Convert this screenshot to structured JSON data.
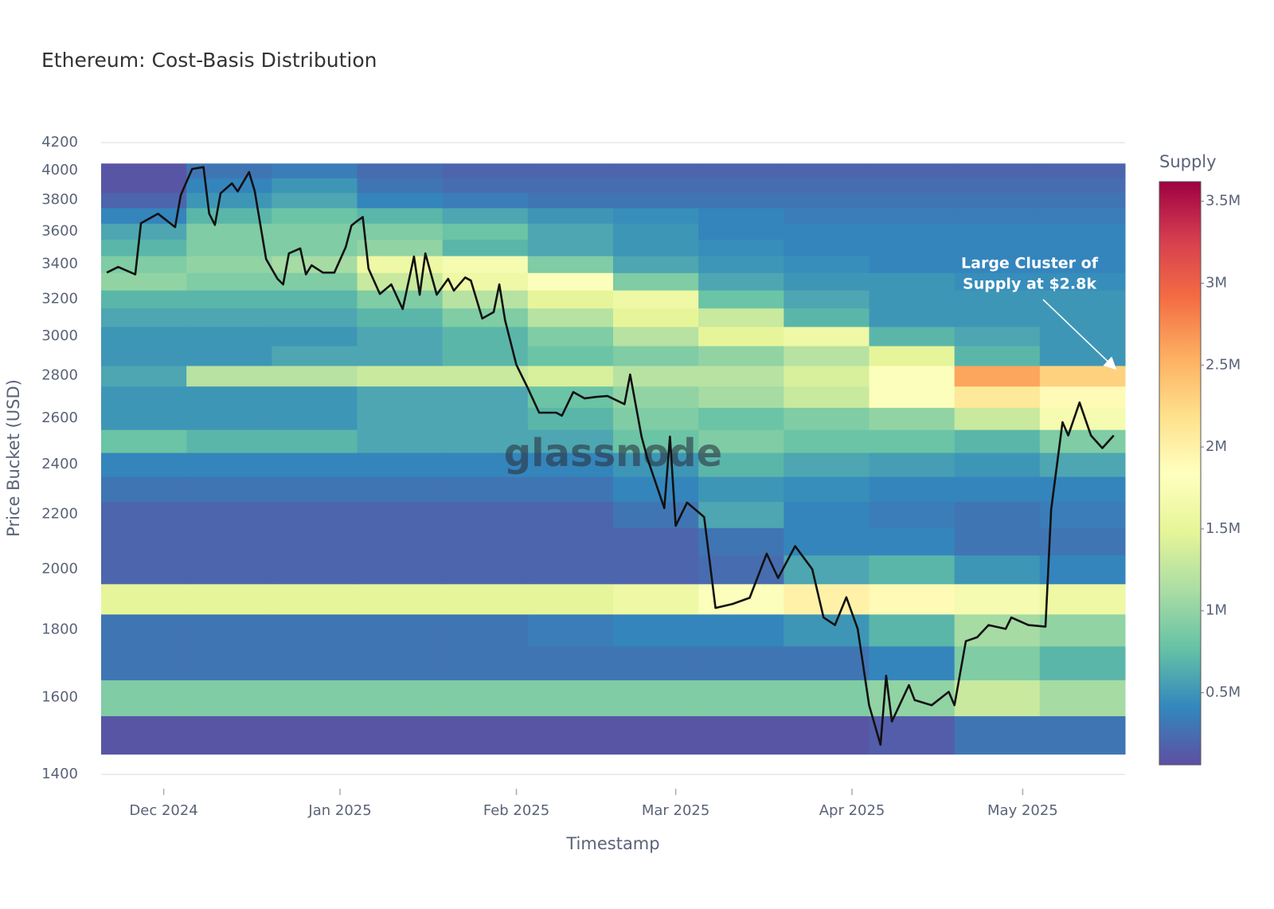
{
  "chart_data": {
    "type": "heatmap",
    "title": "Ethereum: Cost-Basis Distribution",
    "x_label": "Timestamp",
    "y_label": "Price Bucket (USD)",
    "colorbar_title": "Supply",
    "watermark": "glassnode",
    "annotation": [
      "Large Cluster of",
      "Supply at $2.8k"
    ],
    "xlim": [
      "2024-11-20",
      "2025-05-19"
    ],
    "xticks": [
      {
        "value": "2024-12-01",
        "label": "Dec 2024"
      },
      {
        "value": "2025-01-01",
        "label": "Jan 2025"
      },
      {
        "value": "2025-02-01",
        "label": "Feb 2025"
      },
      {
        "value": "2025-03-01",
        "label": "Mar 2025"
      },
      {
        "value": "2025-04-01",
        "label": "Apr 2025"
      },
      {
        "value": "2025-05-01",
        "label": "May 2025"
      }
    ],
    "ylim": [
      1400,
      4200
    ],
    "yticks": [
      1400,
      1600,
      1800,
      2000,
      2200,
      2400,
      2600,
      2800,
      3000,
      3200,
      3400,
      3600,
      3800,
      4000,
      4200
    ],
    "ylog": true,
    "grid": true,
    "colorscale": [
      "#5e4fa2",
      "#3288bd",
      "#66c2a5",
      "#abdda4",
      "#e6f598",
      "#ffffbf",
      "#fee08b",
      "#fdae61",
      "#f46d43",
      "#d53e4f",
      "#9e0142"
    ],
    "zlim": [
      60000,
      3620000
    ],
    "zticks": [
      {
        "value": 500000,
        "label": "0.5M"
      },
      {
        "value": 1000000,
        "label": "1M"
      },
      {
        "value": 1500000,
        "label": "1.5M"
      },
      {
        "value": 2000000,
        "label": "2M"
      },
      {
        "value": 2500000,
        "label": "2.5M"
      },
      {
        "value": 3000000,
        "label": "3M"
      },
      {
        "value": 3500000,
        "label": "3.5M"
      }
    ],
    "x_bins": [
      "2024-11-20",
      "2024-12-05",
      "2024-12-20",
      "2025-01-04",
      "2025-01-19",
      "2025-02-03",
      "2025-02-18",
      "2025-03-05",
      "2025-03-20",
      "2025-04-04",
      "2025-04-19",
      "2025-05-04",
      "2025-05-19"
    ],
    "y_bins": [
      1450,
      1550,
      1650,
      1750,
      1850,
      1950,
      2050,
      2150,
      2250,
      2350,
      2450,
      2550,
      2650,
      2750,
      2850,
      2950,
      3050,
      3150,
      3250,
      3350,
      3450,
      3550,
      3650,
      3750,
      3850,
      3950,
      4050
    ],
    "z": [
      [
        100000,
        100000,
        100000,
        100000,
        100000,
        100000,
        100000,
        100000,
        100000,
        150000,
        300000,
        300000
      ],
      [
        900000,
        900000,
        900000,
        900000,
        900000,
        900000,
        900000,
        900000,
        900000,
        1000000,
        1300000,
        1100000
      ],
      [
        300000,
        300000,
        300000,
        300000,
        300000,
        300000,
        300000,
        300000,
        300000,
        400000,
        900000,
        700000
      ],
      [
        300000,
        300000,
        300000,
        300000,
        300000,
        350000,
        400000,
        400000,
        500000,
        700000,
        1100000,
        1000000
      ],
      [
        1500000,
        1500000,
        1500000,
        1500000,
        1500000,
        1500000,
        1600000,
        1800000,
        2000000,
        1900000,
        1700000,
        1600000
      ],
      [
        200000,
        200000,
        200000,
        200000,
        200000,
        200000,
        200000,
        250000,
        600000,
        700000,
        500000,
        400000
      ],
      [
        200000,
        200000,
        200000,
        200000,
        200000,
        200000,
        200000,
        300000,
        400000,
        400000,
        300000,
        300000
      ],
      [
        200000,
        200000,
        200000,
        200000,
        200000,
        200000,
        300000,
        600000,
        400000,
        350000,
        300000,
        350000
      ],
      [
        300000,
        300000,
        300000,
        300000,
        300000,
        300000,
        400000,
        500000,
        450000,
        400000,
        400000,
        400000
      ],
      [
        400000,
        400000,
        400000,
        400000,
        400000,
        400000,
        500000,
        700000,
        600000,
        550000,
        500000,
        600000
      ],
      [
        800000,
        700000,
        700000,
        600000,
        600000,
        600000,
        800000,
        900000,
        800000,
        800000,
        700000,
        900000
      ],
      [
        500000,
        500000,
        500000,
        600000,
        600000,
        700000,
        900000,
        800000,
        900000,
        1000000,
        1300000,
        1700000
      ],
      [
        500000,
        500000,
        500000,
        600000,
        600000,
        800000,
        1000000,
        1100000,
        1300000,
        1800000,
        2100000,
        1900000
      ],
      [
        600000,
        1200000,
        1200000,
        1300000,
        1300000,
        1400000,
        1200000,
        1200000,
        1400000,
        1800000,
        2600000,
        2300000
      ],
      [
        500000,
        500000,
        600000,
        600000,
        700000,
        800000,
        900000,
        1000000,
        1200000,
        1500000,
        700000,
        500000
      ],
      [
        500000,
        500000,
        500000,
        600000,
        700000,
        900000,
        1200000,
        1500000,
        1600000,
        700000,
        600000,
        500000
      ],
      [
        600000,
        600000,
        600000,
        700000,
        900000,
        1200000,
        1500000,
        1300000,
        700000,
        500000,
        500000,
        500000
      ],
      [
        700000,
        700000,
        700000,
        900000,
        1200000,
        1500000,
        1600000,
        800000,
        600000,
        500000,
        500000,
        500000
      ],
      [
        1000000,
        900000,
        900000,
        1300000,
        1600000,
        1800000,
        900000,
        600000,
        500000,
        500000,
        450000,
        450000
      ],
      [
        900000,
        1000000,
        1100000,
        1600000,
        1700000,
        900000,
        600000,
        500000,
        450000,
        400000,
        400000,
        400000
      ],
      [
        700000,
        900000,
        900000,
        1000000,
        700000,
        600000,
        500000,
        450000,
        400000,
        400000,
        400000,
        400000
      ],
      [
        600000,
        900000,
        900000,
        900000,
        800000,
        600000,
        500000,
        400000,
        400000,
        400000,
        400000,
        400000
      ],
      [
        400000,
        700000,
        800000,
        700000,
        600000,
        500000,
        450000,
        400000,
        350000,
        350000,
        350000,
        350000
      ],
      [
        200000,
        500000,
        600000,
        400000,
        350000,
        300000,
        300000,
        300000,
        300000,
        300000,
        300000,
        300000
      ],
      [
        100000,
        400000,
        500000,
        300000,
        250000,
        250000,
        250000,
        250000,
        250000,
        250000,
        250000,
        250000
      ],
      [
        100000,
        300000,
        350000,
        250000,
        200000,
        200000,
        200000,
        200000,
        200000,
        200000,
        200000,
        200000
      ]
    ],
    "line": {
      "color": "#111111",
      "x": [
        "2024-11-21",
        "2024-11-23",
        "2024-11-26",
        "2024-11-27",
        "2024-11-30",
        "2024-12-03",
        "2024-12-04",
        "2024-12-06",
        "2024-12-08",
        "2024-12-09",
        "2024-12-10",
        "2024-12-11",
        "2024-12-13",
        "2024-12-14",
        "2024-12-16",
        "2024-12-17",
        "2024-12-19",
        "2024-12-21",
        "2024-12-22",
        "2024-12-23",
        "2024-12-25",
        "2024-12-26",
        "2024-12-27",
        "2024-12-29",
        "2024-12-31",
        "2025-01-02",
        "2025-01-03",
        "2025-01-04",
        "2025-01-05",
        "2025-01-06",
        "2025-01-08",
        "2025-01-10",
        "2025-01-12",
        "2025-01-14",
        "2025-01-15",
        "2025-01-16",
        "2025-01-18",
        "2025-01-20",
        "2025-01-21",
        "2025-01-23",
        "2025-01-24",
        "2025-01-26",
        "2025-01-28",
        "2025-01-29",
        "2025-01-30",
        "2025-02-01",
        "2025-02-03",
        "2025-02-05",
        "2025-02-08",
        "2025-02-09",
        "2025-02-11",
        "2025-02-13",
        "2025-02-15",
        "2025-02-17",
        "2025-02-20",
        "2025-02-21",
        "2025-02-23",
        "2025-02-24",
        "2025-02-27",
        "2025-02-28",
        "2025-03-01",
        "2025-03-03",
        "2025-03-06",
        "2025-03-08",
        "2025-03-11",
        "2025-03-14",
        "2025-03-17",
        "2025-03-19",
        "2025-03-22",
        "2025-03-25",
        "2025-03-27",
        "2025-03-29",
        "2025-03-31",
        "2025-04-02",
        "2025-04-04",
        "2025-04-06",
        "2025-04-07",
        "2025-04-08",
        "2025-04-11",
        "2025-04-12",
        "2025-04-15",
        "2025-04-18",
        "2025-04-19",
        "2025-04-21",
        "2025-04-23",
        "2025-04-25",
        "2025-04-28",
        "2025-04-29",
        "2025-05-02",
        "2025-05-05",
        "2025-05-06",
        "2025-05-08",
        "2025-05-09",
        "2025-05-11",
        "2025-05-13",
        "2025-05-15",
        "2025-05-17"
      ],
      "values": [
        3350,
        3383,
        3340,
        3650,
        3712,
        3626,
        3833,
        4012,
        4025,
        3712,
        3640,
        3845,
        3913,
        3858,
        3990,
        3860,
        3430,
        3314,
        3282,
        3464,
        3494,
        3340,
        3393,
        3350,
        3350,
        3502,
        3636,
        3665,
        3690,
        3374,
        3228,
        3282,
        3144,
        3445,
        3224,
        3464,
        3224,
        3314,
        3247,
        3322,
        3304,
        3093,
        3128,
        3282,
        3084,
        2854,
        2741,
        2626,
        2626,
        2612,
        2722,
        2692,
        2699,
        2703,
        2665,
        2806,
        2519,
        2427,
        2224,
        2519,
        2157,
        2246,
        2190,
        1870,
        1883,
        1903,
        2055,
        1970,
        2082,
        2000,
        1839,
        1815,
        1905,
        1803,
        1579,
        1474,
        1662,
        1535,
        1635,
        1593,
        1579,
        1616,
        1579,
        1765,
        1777,
        1815,
        1803,
        1839,
        1815,
        1810,
        2218,
        2583,
        2524,
        2673,
        2524,
        2469,
        2524
      ]
    }
  }
}
